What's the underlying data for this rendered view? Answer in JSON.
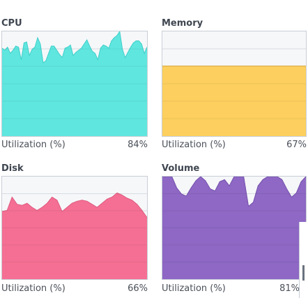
{
  "panels": {
    "cpu": {
      "title": "CPU",
      "util_label": "Utilization (%)",
      "util_value": "84%",
      "fill": "#5fe6df",
      "stroke": "#3fcfca",
      "series": [
        84,
        82,
        85,
        79,
        82,
        86,
        85,
        73,
        89,
        90,
        77,
        83,
        85,
        94,
        88,
        70,
        72,
        79,
        86,
        86,
        82,
        78,
        75,
        84,
        85,
        87,
        77,
        80,
        82,
        84,
        88,
        92,
        86,
        81,
        79,
        73,
        84,
        87,
        86,
        84,
        91,
        94,
        96,
        100,
        83,
        75,
        80,
        85,
        89,
        91,
        91,
        88,
        79,
        85
      ]
    },
    "memory": {
      "title": "Memory",
      "util_label": "Utilization (%)",
      "util_value": "67%",
      "fill": "#fccf5e",
      "stroke": "#e7b44a",
      "series": [
        67,
        67,
        67,
        67,
        67,
        67,
        67,
        67,
        67,
        67,
        67,
        67,
        67,
        67,
        67,
        67,
        67,
        67,
        67,
        67
      ]
    },
    "disk": {
      "title": "Disk",
      "util_label": "Utilization (%)",
      "util_value": "66%",
      "fill": "#f46f93",
      "stroke": "#de5a80",
      "series": [
        66,
        67,
        80,
        73,
        72,
        74,
        70,
        67,
        70,
        74,
        80,
        77,
        66,
        70,
        74,
        76,
        77,
        76,
        73,
        70,
        74,
        78,
        80,
        84,
        82,
        79,
        77,
        73,
        67,
        60
      ]
    },
    "volume": {
      "title": "Volume",
      "util_label": "Utilization (%)",
      "util_value": "81%",
      "fill": "#8e68c4",
      "stroke": "#7550ad",
      "series": [
        100,
        100,
        100,
        89,
        83,
        81,
        89,
        96,
        100,
        96,
        88,
        86,
        95,
        97,
        91,
        100,
        100,
        100,
        71,
        75,
        91,
        97,
        100,
        100,
        100,
        97,
        88,
        80,
        84,
        95,
        100
      ]
    }
  }
}
